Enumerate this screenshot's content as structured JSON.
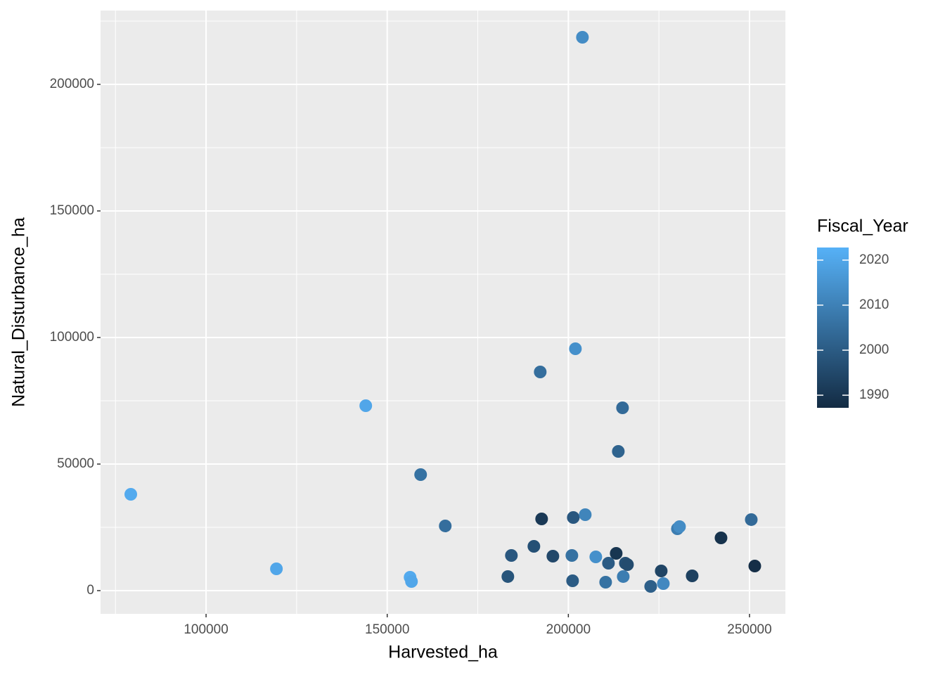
{
  "chart_data": {
    "type": "scatter",
    "x_label": "Harvested_ha",
    "y_label": "Natural_Disturbance_ha",
    "color_label": "Fiscal_Year",
    "xlim": [
      70874,
      259903
    ],
    "ylim": [
      -9167,
      229167
    ],
    "xticks": [
      100000,
      150000,
      200000,
      250000
    ],
    "yticks": [
      0,
      50000,
      100000,
      150000,
      200000
    ],
    "xminorticks": [
      75000,
      125000,
      175000,
      225000
    ],
    "yminorticks": [
      25000,
      75000,
      125000,
      175000,
      225000
    ],
    "grid": true,
    "colorlim": [
      1987.2,
      2022.8
    ],
    "colorticks": [
      1990,
      2000,
      2010,
      2020
    ],
    "color_low": "#132B43",
    "color_high": "#56B1F7",
    "x": [
      79223,
      119417,
      144078,
      156311,
      156699,
      159223,
      166019,
      183301,
      184272,
      190485,
      192233,
      192621,
      195728,
      200971,
      201165,
      201359,
      201942,
      203883,
      204660,
      207573,
      210291,
      211068,
      213204,
      213786,
      214951,
      215146,
      215728,
      216311,
      222718,
      225631,
      226214,
      230097,
      230680,
      234175,
      242136,
      250485,
      251456
    ],
    "y": [
      38056,
      8611,
      73056,
      5278,
      3611,
      45833,
      25556,
      5556,
      13889,
      17500,
      86389,
      28333,
      13611,
      13889,
      3889,
      28889,
      95556,
      218611,
      30000,
      13333,
      3333,
      10833,
      14722,
      55000,
      72222,
      5556,
      10833,
      10278,
      1667,
      7778,
      2778,
      24444,
      25278,
      5833,
      20833,
      28056,
      9722
    ],
    "color_values": [
      2021,
      2020,
      2020,
      2021,
      2020,
      2006,
      2005,
      1998,
      1999,
      1997,
      2005,
      1991,
      1995,
      2006,
      2000,
      1999,
      2014,
      2013,
      2011,
      2014,
      2006,
      2000,
      1990,
      2002,
      2004,
      2009,
      1997,
      1996,
      2001,
      1994,
      2012,
      2009,
      2013,
      1993,
      1989,
      2004,
      1988
    ]
  }
}
